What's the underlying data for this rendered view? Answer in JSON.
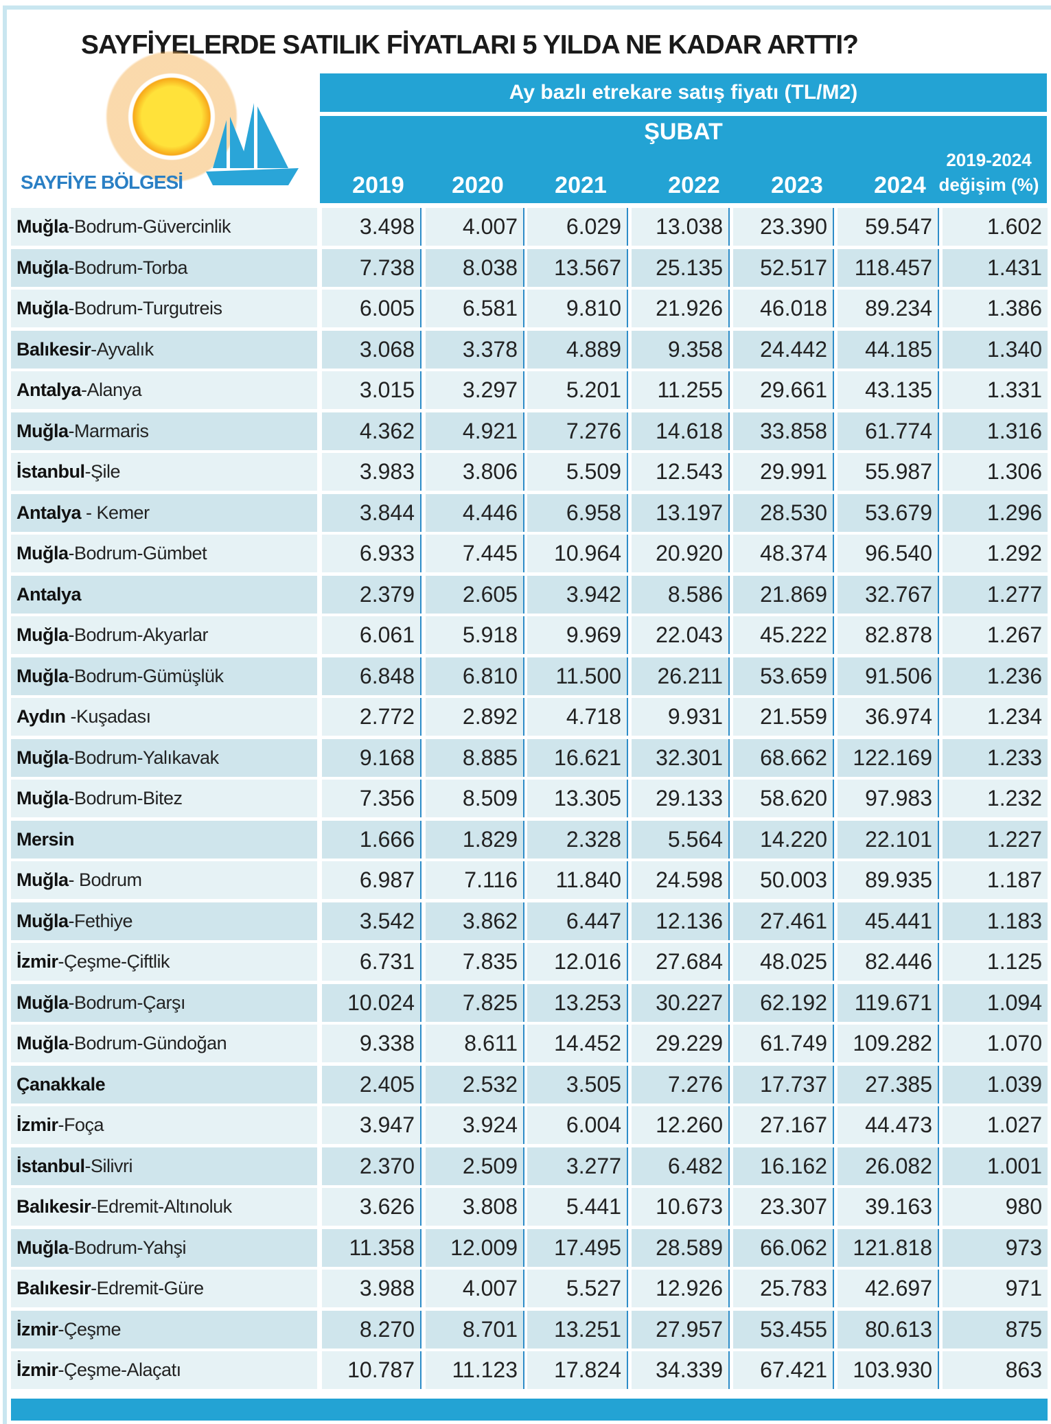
{
  "title": "SAYFİYELERDE SATILIK FİYATLARI 5 YILDA NE KADAR ARTTI?",
  "region_label": "SAYFİYE BÖLGESİ",
  "header": {
    "metric": "Ay bazlı etrekare satış fiyatı (TL/M2)",
    "month": "ŞUBAT",
    "years": [
      "2019",
      "2020",
      "2021",
      "2022",
      "2023",
      "2024"
    ],
    "change_line1": "2019-2024",
    "change_line2": "değişim (%)"
  },
  "colors": {
    "header": "#23a3d4",
    "row_light": "#e6f2f5",
    "row_dark": "#cfe5ec",
    "region": "#2a7fc4"
  },
  "rows": [
    {
      "bold": "Muğla",
      "rest": "-Bodrum-Güvercinlik",
      "v": [
        "3.498",
        "4.007",
        "6.029",
        "13.038",
        "23.390",
        "59.547",
        "1.602"
      ]
    },
    {
      "bold": "Muğla",
      "rest": "-Bodrum-Torba",
      "v": [
        "7.738",
        "8.038",
        "13.567",
        "25.135",
        "52.517",
        "118.457",
        "1.431"
      ]
    },
    {
      "bold": "Muğla",
      "rest": "-Bodrum-Turgutreis",
      "v": [
        "6.005",
        "6.581",
        "9.810",
        "21.926",
        "46.018",
        "89.234",
        "1.386"
      ]
    },
    {
      "bold": "Balıkesir",
      "rest": "-Ayvalık",
      "v": [
        "3.068",
        "3.378",
        "4.889",
        "9.358",
        "24.442",
        "44.185",
        "1.340"
      ]
    },
    {
      "bold": "Antalya",
      "rest": "-Alanya",
      "v": [
        "3.015",
        "3.297",
        "5.201",
        "11.255",
        "29.661",
        "43.135",
        "1.331"
      ]
    },
    {
      "bold": "Muğla",
      "rest": "-Marmaris",
      "v": [
        "4.362",
        "4.921",
        "7.276",
        "14.618",
        "33.858",
        "61.774",
        "1.316"
      ]
    },
    {
      "bold": "İstanbul",
      "rest": "-Şile",
      "v": [
        "3.983",
        "3.806",
        "5.509",
        "12.543",
        "29.991",
        "55.987",
        "1.306"
      ]
    },
    {
      "bold": "Antalya",
      "rest": " - Kemer",
      "v": [
        "3.844",
        "4.446",
        "6.958",
        "13.197",
        "28.530",
        "53.679",
        "1.296"
      ]
    },
    {
      "bold": "Muğla",
      "rest": "-Bodrum-Gümbet",
      "v": [
        "6.933",
        "7.445",
        "10.964",
        "20.920",
        "48.374",
        "96.540",
        "1.292"
      ]
    },
    {
      "bold": "Antalya",
      "rest": "",
      "v": [
        "2.379",
        "2.605",
        "3.942",
        "8.586",
        "21.869",
        "32.767",
        "1.277"
      ]
    },
    {
      "bold": "Muğla",
      "rest": "-Bodrum-Akyarlar",
      "v": [
        "6.061",
        "5.918",
        "9.969",
        "22.043",
        "45.222",
        "82.878",
        "1.267"
      ]
    },
    {
      "bold": "Muğla",
      "rest": "-Bodrum-Gümüşlük",
      "v": [
        "6.848",
        "6.810",
        "11.500",
        "26.211",
        "53.659",
        "91.506",
        "1.236"
      ]
    },
    {
      "bold": "Aydın",
      "rest": " -Kuşadası",
      "v": [
        "2.772",
        "2.892",
        "4.718",
        "9.931",
        "21.559",
        "36.974",
        "1.234"
      ]
    },
    {
      "bold": "Muğla",
      "rest": "-Bodrum-Yalıkavak",
      "v": [
        "9.168",
        "8.885",
        "16.621",
        "32.301",
        "68.662",
        "122.169",
        "1.233"
      ]
    },
    {
      "bold": "Muğla",
      "rest": "-Bodrum-Bitez",
      "v": [
        "7.356",
        "8.509",
        "13.305",
        "29.133",
        "58.620",
        "97.983",
        "1.232"
      ]
    },
    {
      "bold": "Mersin",
      "rest": "",
      "v": [
        "1.666",
        "1.829",
        "2.328",
        "5.564",
        "14.220",
        "22.101",
        "1.227"
      ]
    },
    {
      "bold": "Muğla",
      "rest": "- Bodrum",
      "v": [
        "6.987",
        "7.116",
        "11.840",
        "24.598",
        "50.003",
        "89.935",
        "1.187"
      ]
    },
    {
      "bold": "Muğla",
      "rest": "-Fethiye",
      "v": [
        "3.542",
        "3.862",
        "6.447",
        "12.136",
        "27.461",
        "45.441",
        "1.183"
      ]
    },
    {
      "bold": "İzmir",
      "rest": "-Çeşme-Çiftlik",
      "v": [
        "6.731",
        "7.835",
        "12.016",
        "27.684",
        "48.025",
        "82.446",
        "1.125"
      ]
    },
    {
      "bold": "Muğla",
      "rest": "-Bodrum-Çarşı",
      "v": [
        "10.024",
        "7.825",
        "13.253",
        "30.227",
        "62.192",
        "119.671",
        "1.094"
      ]
    },
    {
      "bold": "Muğla",
      "rest": "-Bodrum-Gündoğan",
      "v": [
        "9.338",
        "8.611",
        "14.452",
        "29.229",
        "61.749",
        "109.282",
        "1.070"
      ]
    },
    {
      "bold": "Çanakkale",
      "rest": "",
      "v": [
        "2.405",
        "2.532",
        "3.505",
        "7.276",
        "17.737",
        "27.385",
        "1.039"
      ]
    },
    {
      "bold": "İzmir",
      "rest": "-Foça",
      "v": [
        "3.947",
        "3.924",
        "6.004",
        "12.260",
        "27.167",
        "44.473",
        "1.027"
      ]
    },
    {
      "bold": "İstanbul",
      "rest": "-Silivri",
      "v": [
        "2.370",
        "2.509",
        "3.277",
        "6.482",
        "16.162",
        "26.082",
        "1.001"
      ]
    },
    {
      "bold": "Balıkesir",
      "rest": "-Edremit-Altınoluk",
      "v": [
        "3.626",
        "3.808",
        "5.441",
        "10.673",
        "23.307",
        "39.163",
        "980"
      ]
    },
    {
      "bold": "Muğla",
      "rest": "-Bodrum-Yahşi",
      "v": [
        "11.358",
        "12.009",
        "17.495",
        "28.589",
        "66.062",
        "121.818",
        "973"
      ]
    },
    {
      "bold": "Balıkesir",
      "rest": "-Edremit-Güre",
      "v": [
        "3.988",
        "4.007",
        "5.527",
        "12.926",
        "25.783",
        "42.697",
        "971"
      ]
    },
    {
      "bold": "İzmir",
      "rest": "-Çeşme",
      "v": [
        "8.270",
        "8.701",
        "13.251",
        "27.957",
        "53.455",
        "80.613",
        "875"
      ]
    },
    {
      "bold": "İzmir",
      "rest": "-Çeşme-Alaçatı",
      "v": [
        "10.787",
        "11.123",
        "17.824",
        "34.339",
        "67.421",
        "103.930",
        "863"
      ]
    }
  ]
}
